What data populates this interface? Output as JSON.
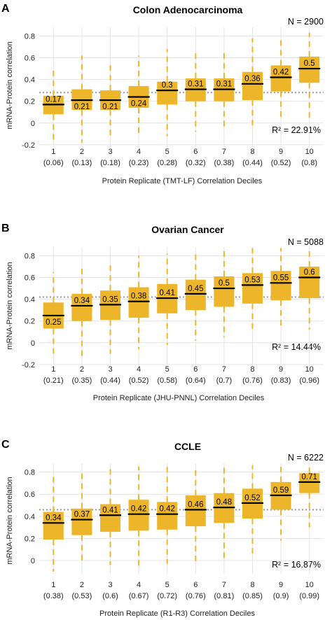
{
  "chart_data": [
    {
      "type": "boxplot",
      "panel": "A",
      "title": "Colon Adenocarcinoma",
      "n_label": "N = 2900",
      "r2_label": "R² = 22.91%",
      "xlabel": "Protein Replicate (TMT-LF) Correlation Deciles",
      "ylabel": "mRNA-Protein correlation",
      "ylim": [
        -0.22,
        0.88
      ],
      "yticks": [
        "-0.2",
        "0",
        "0.2",
        "0.4",
        "0.6",
        "0.8"
      ],
      "ytick_values": [
        -0.2,
        0,
        0.2,
        0.4,
        0.6,
        0.8
      ],
      "reference_line": 0.28,
      "categories": [
        "1",
        "2",
        "3",
        "4",
        "5",
        "6",
        "7",
        "8",
        "9",
        "10"
      ],
      "category_sublabels": [
        "(0.06)",
        "(0.13)",
        "(0.18)",
        "(0.23)",
        "(0.28)",
        "(0.32)",
        "(0.38)",
        "(0.44)",
        "(0.52)",
        "(0.8)"
      ],
      "median_labels": [
        "0.17",
        "0.21",
        "0.21",
        "0.24",
        "0.3",
        "0.31",
        "0.31",
        "0.36",
        "0.42",
        "0.5"
      ],
      "median": [
        0.17,
        0.21,
        0.21,
        0.24,
        0.3,
        0.31,
        0.31,
        0.36,
        0.42,
        0.5
      ],
      "q1": [
        0.08,
        0.12,
        0.12,
        0.14,
        0.17,
        0.2,
        0.2,
        0.21,
        0.29,
        0.37
      ],
      "q3": [
        0.25,
        0.31,
        0.3,
        0.34,
        0.38,
        0.41,
        0.41,
        0.47,
        0.53,
        0.61
      ],
      "whisker_low": [
        -0.18,
        -0.18,
        -0.14,
        -0.1,
        -0.12,
        -0.08,
        -0.07,
        -0.06,
        0.05,
        0.04
      ],
      "whisker_high": [
        0.51,
        0.62,
        0.56,
        0.62,
        0.68,
        0.68,
        0.68,
        0.78,
        0.8,
        0.83
      ]
    },
    {
      "type": "boxplot",
      "panel": "B",
      "title": "Ovarian Cancer",
      "n_label": "N = 5088",
      "r2_label": "R² = 14.44%",
      "xlabel": "Protein Replicate (JHU-PNNL) Correlation Deciles",
      "ylabel": "mRNA-Protein correlation",
      "ylim": [
        -0.22,
        0.88
      ],
      "yticks": [
        "-0.2",
        "0",
        "0.2",
        "0.4",
        "0.6",
        "0.8"
      ],
      "ytick_values": [
        -0.2,
        0,
        0.2,
        0.4,
        0.6,
        0.8
      ],
      "reference_line": 0.42,
      "categories": [
        "1",
        "2",
        "3",
        "4",
        "5",
        "6",
        "7",
        "8",
        "9",
        "10"
      ],
      "category_sublabels": [
        "(0.21)",
        "(0.35)",
        "(0.44)",
        "(0.52)",
        "(0.58)",
        "(0.64)",
        "(0.7)",
        "(0.76)",
        "(0.83)",
        "(0.96)"
      ],
      "median_labels": [
        "0.25",
        "0.34",
        "0.35",
        "0.38",
        "0.41",
        "0.45",
        "0.5",
        "0.53",
        "0.55",
        "0.6"
      ],
      "median": [
        0.25,
        0.34,
        0.35,
        0.38,
        0.41,
        0.45,
        0.5,
        0.53,
        0.55,
        0.6
      ],
      "q1": [
        0.13,
        0.2,
        0.21,
        0.23,
        0.27,
        0.3,
        0.33,
        0.36,
        0.39,
        0.41
      ],
      "q3": [
        0.37,
        0.45,
        0.48,
        0.51,
        0.54,
        0.58,
        0.61,
        0.64,
        0.66,
        0.7
      ],
      "whisker_low": [
        -0.1,
        -0.14,
        -0.1,
        -0.06,
        -0.02,
        0.02,
        0.05,
        0.1,
        0.12,
        0.12
      ],
      "whisker_high": [
        0.65,
        0.72,
        0.75,
        0.8,
        0.82,
        0.85,
        0.86,
        0.87,
        0.87,
        0.87
      ]
    },
    {
      "type": "boxplot",
      "panel": "C",
      "title": "CCLE",
      "n_label": "N = 6222",
      "r2_label": "R² = 16.87%",
      "xlabel": "Protein Replicate (R1-R3) Correlation Deciles",
      "ylabel": "mRNA-Protein correlation",
      "ylim": [
        -0.12,
        0.88
      ],
      "yticks": [
        "0",
        "0.2",
        "0.4",
        "0.6",
        "0.8"
      ],
      "ytick_values": [
        0,
        0.2,
        0.4,
        0.6,
        0.8
      ],
      "reference_line": 0.46,
      "categories": [
        "1",
        "2",
        "3",
        "4",
        "5",
        "6",
        "7",
        "8",
        "9",
        "10"
      ],
      "category_sublabels": [
        "(0.38)",
        "(0.53)",
        "(0.6)",
        "(0.67)",
        "(0.72)",
        "(0.76)",
        "(0.81)",
        "(0.85)",
        "(0.9)",
        "(0.99)"
      ],
      "median_labels": [
        "0.34",
        "0.37",
        "0.41",
        "0.42",
        "0.42",
        "0.46",
        "0.48",
        "0.52",
        "0.59",
        "0.71"
      ],
      "median": [
        0.34,
        0.37,
        0.41,
        0.42,
        0.42,
        0.46,
        0.48,
        0.52,
        0.59,
        0.71
      ],
      "q1": [
        0.19,
        0.23,
        0.26,
        0.27,
        0.28,
        0.31,
        0.34,
        0.38,
        0.46,
        0.61
      ],
      "q3": [
        0.44,
        0.47,
        0.51,
        0.55,
        0.53,
        0.59,
        0.61,
        0.65,
        0.71,
        0.79
      ],
      "whisker_low": [
        -0.1,
        -0.03,
        -0.04,
        -0.06,
        -0.03,
        -0.02,
        0.0,
        0.04,
        0.18,
        0.3
      ],
      "whisker_high": [
        0.79,
        0.82,
        0.85,
        0.85,
        0.85,
        0.85,
        0.85,
        0.86,
        0.87,
        0.87
      ]
    }
  ],
  "colors": {
    "box_fill": "#EDB52A",
    "whisker": "#EDB52A",
    "median_line": "#000000",
    "reference_line": "#9A9A9A",
    "gridline": "#E4E4E4"
  }
}
